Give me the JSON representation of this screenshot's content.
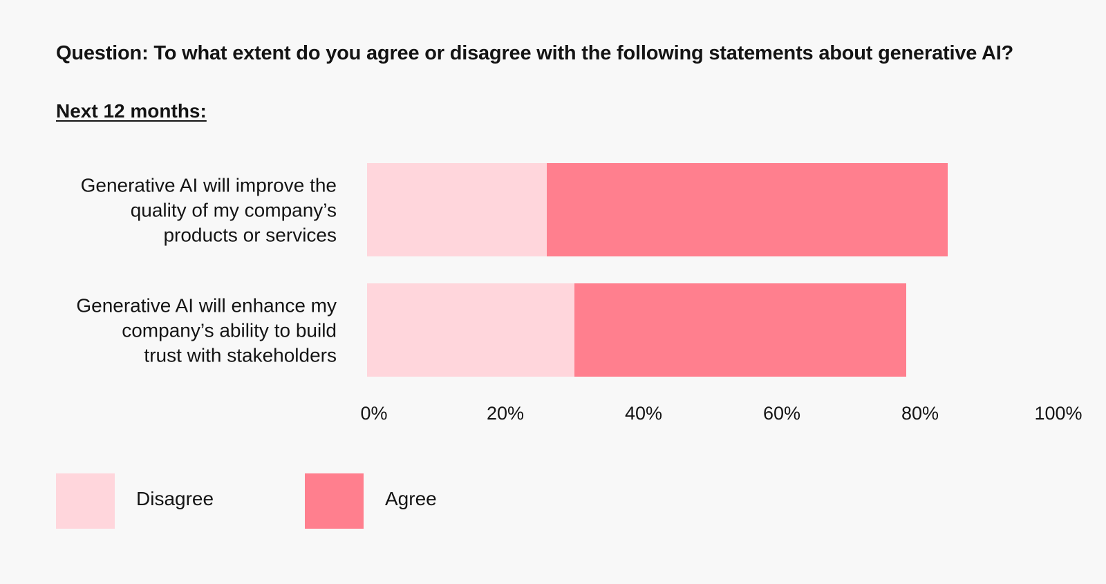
{
  "question": "Question: To what extent do you agree or disagree with the following statements about generative AI?",
  "section_heading": "Next 12 months:",
  "colors": {
    "background": "#f8f8f8",
    "disagree": "#ffd6dc",
    "agree": "#ff7f8e",
    "text": "#141414"
  },
  "legend": {
    "disagree_label": "Disagree",
    "agree_label": "Agree"
  },
  "chart_data": {
    "type": "bar",
    "orientation": "horizontal",
    "stacked": true,
    "categories": [
      [
        "Generative AI will improve the",
        "quality of my company’s",
        "products or services"
      ],
      [
        "Generative AI will enhance my",
        "company’s ability to build",
        "trust with stakeholders"
      ]
    ],
    "series": [
      {
        "name": "Disagree",
        "values": [
          26,
          30
        ],
        "color": "#ffd6dc"
      },
      {
        "name": "Agree",
        "values": [
          58,
          48
        ],
        "color": "#ff7f8e"
      }
    ],
    "xlim": [
      0,
      100
    ],
    "xticks": [
      "0%",
      "20%",
      "40%",
      "60%",
      "80%",
      "100%"
    ],
    "xtick_values": [
      0,
      20,
      40,
      60,
      80,
      100
    ],
    "legend_position": "bottom-left",
    "grid": false
  }
}
